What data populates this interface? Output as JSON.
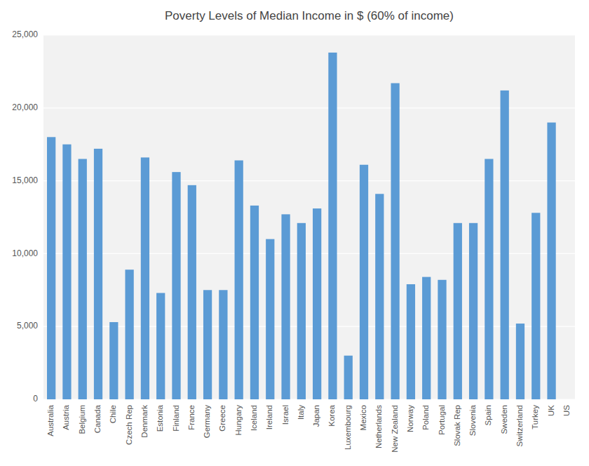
{
  "chart_data": {
    "type": "bar",
    "title": "Poverty Levels of Median Income in $ (60% of income)",
    "categories": [
      "Australia",
      "Austria",
      "Belgium",
      "Canada",
      "Chile",
      "Czech Rep",
      "Denmark",
      "Estonia",
      "Finland",
      "France",
      "Germany",
      "Greece",
      "Hungary",
      "Iceland",
      "Ireland",
      "Israel",
      "Italy",
      "Japan",
      "Korea",
      "Luxembourg",
      "Mexico",
      "Netherlands",
      "New Zealand",
      "Norway",
      "Poland",
      "Portugal",
      "Slovak Rep",
      "Slovenia",
      "Spain",
      "Sweden",
      "Switzerland",
      "Turkey",
      "UK",
      "US"
    ],
    "values": [
      18000,
      17500,
      16500,
      17200,
      5300,
      8900,
      16600,
      7300,
      15600,
      14700,
      7500,
      7500,
      16400,
      13300,
      11000,
      12700,
      12100,
      13100,
      23800,
      3000,
      16100,
      14100,
      21700,
      7900,
      8400,
      8200,
      12100,
      12100,
      16500,
      21200,
      5200,
      12800,
      19000,
      null
    ],
    "color": "#5B9BD5",
    "ylim": [
      0,
      25000
    ],
    "yticks": [
      0,
      {
        "value": 5000,
        "label": "5,000"
      },
      {
        "value": 10000,
        "label": "10,000"
      },
      {
        "value": 15000,
        "label": "15,000"
      },
      {
        "value": 20000,
        "label": "20,000"
      },
      {
        "value": 25000,
        "label": "25,000"
      }
    ],
    "grid": true
  }
}
